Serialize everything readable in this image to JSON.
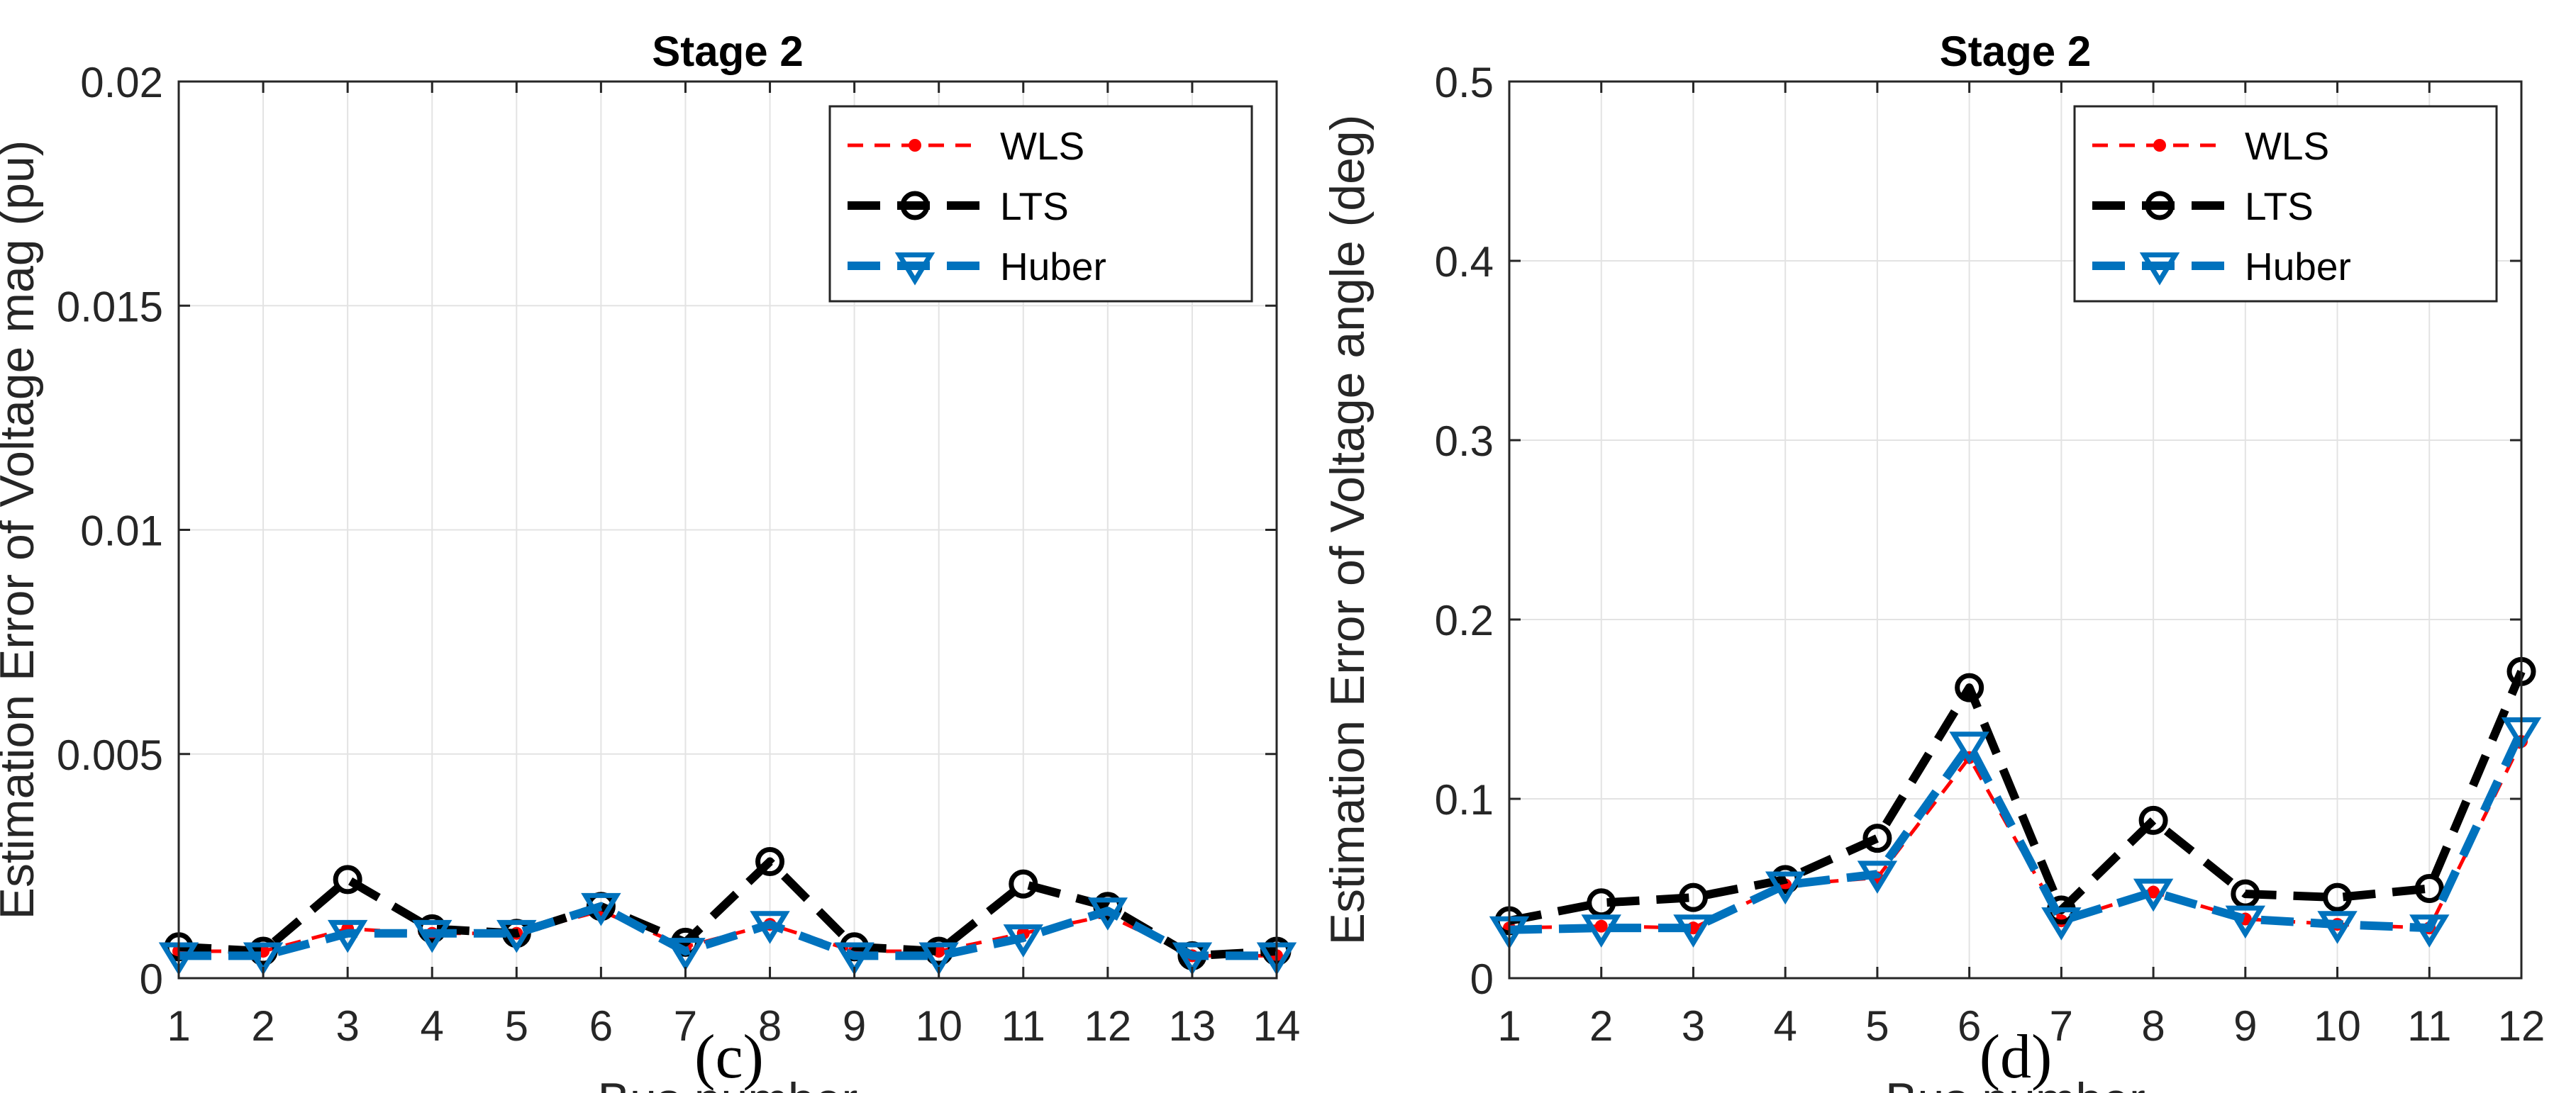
{
  "chart_data": [
    {
      "type": "line",
      "panel": "(c)",
      "title": "Stage 2",
      "xlabel": "Bus number",
      "ylabel": "Estimation Error of Voltage mag (pu)",
      "xlim": [
        1,
        14
      ],
      "ylim": [
        0,
        0.02
      ],
      "x": [
        1,
        2,
        3,
        4,
        5,
        6,
        7,
        8,
        9,
        10,
        11,
        12,
        13,
        14
      ],
      "xticks": [
        "1",
        "2",
        "3",
        "4",
        "5",
        "6",
        "7",
        "8",
        "9",
        "10",
        "11",
        "12",
        "13",
        "14"
      ],
      "yticks": [
        0,
        0.005,
        0.01,
        0.015,
        0.02
      ],
      "ytick_labels": [
        "0",
        "0.005",
        "0.01",
        "0.015",
        "0.02"
      ],
      "grid": true,
      "legend_position": "top-right",
      "series": [
        {
          "name": "WLS",
          "color": "#ff0000",
          "marker": "dot",
          "values": [
            0.0006,
            0.0006,
            0.0011,
            0.001,
            0.001,
            0.0015,
            0.0007,
            0.0012,
            0.0006,
            0.0006,
            0.001,
            0.0014,
            0.0005,
            0.0005
          ]
        },
        {
          "name": "LTS",
          "color": "#000000",
          "marker": "circle",
          "values": [
            0.0007,
            0.0006,
            0.0022,
            0.0011,
            0.001,
            0.0016,
            0.0008,
            0.0026,
            0.0007,
            0.0006,
            0.0021,
            0.0016,
            0.0005,
            0.0006
          ]
        },
        {
          "name": "Huber",
          "color": "#0072bd",
          "marker": "triangle-down",
          "values": [
            0.0005,
            0.0005,
            0.001,
            0.001,
            0.001,
            0.0016,
            0.0006,
            0.0012,
            0.0005,
            0.0005,
            0.0009,
            0.0015,
            0.0005,
            0.0005
          ]
        }
      ]
    },
    {
      "type": "line",
      "panel": "(d)",
      "title": "Stage 2",
      "xlabel": "Bus number",
      "ylabel": "Estimation Error of Voltage angle (deg)",
      "xlim": [
        1,
        12
      ],
      "ylim": [
        0,
        0.5
      ],
      "x": [
        1,
        2,
        3,
        4,
        5,
        6,
        7,
        8,
        9,
        10,
        11,
        12
      ],
      "xticks": [
        "1",
        "2",
        "3",
        "4",
        "5",
        "6",
        "7",
        "8",
        "9",
        "10",
        "11",
        "12"
      ],
      "yticks": [
        0,
        0.1,
        0.2,
        0.3,
        0.4,
        0.5
      ],
      "ytick_labels": [
        "0",
        "0.1",
        "0.2",
        "0.3",
        "0.4",
        "0.5"
      ],
      "grid": true,
      "legend_position": "top-right",
      "series": [
        {
          "name": "WLS",
          "color": "#ff0000",
          "marker": "dot",
          "values": [
            0.028,
            0.029,
            0.028,
            0.052,
            0.056,
            0.123,
            0.032,
            0.048,
            0.033,
            0.03,
            0.028,
            0.132
          ]
        },
        {
          "name": "LTS",
          "color": "#000000",
          "marker": "circle",
          "values": [
            0.032,
            0.042,
            0.045,
            0.055,
            0.078,
            0.162,
            0.038,
            0.088,
            0.047,
            0.045,
            0.05,
            0.171
          ]
        },
        {
          "name": "Huber",
          "color": "#0072bd",
          "marker": "triangle-down",
          "values": [
            0.027,
            0.028,
            0.028,
            0.052,
            0.058,
            0.13,
            0.032,
            0.048,
            0.033,
            0.03,
            0.028,
            0.138
          ]
        }
      ]
    }
  ]
}
